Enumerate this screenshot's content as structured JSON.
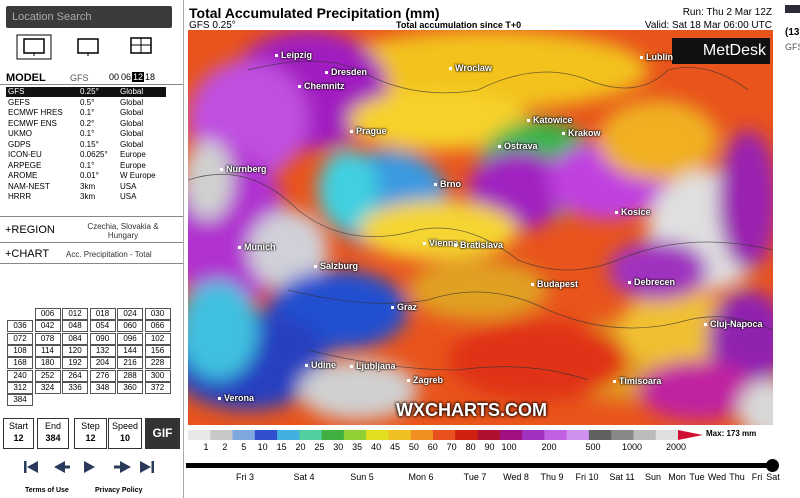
{
  "sidebar": {
    "search_placeholder": "Location Search",
    "model_label": "MODEL",
    "model_name": "GFS",
    "runs": [
      "00",
      "06",
      "12",
      "18"
    ],
    "active_run": "12",
    "models": [
      [
        "GFS",
        "0.25°",
        "Global"
      ],
      [
        "GEFS",
        "0.5°",
        "Global"
      ],
      [
        "ECMWF HRES",
        "0.1°",
        "Global"
      ],
      [
        "ECMWF ENS",
        "0.2°",
        "Global"
      ],
      [
        "UKMO",
        "0.1°",
        "Global"
      ],
      [
        "GDPS",
        "0.15°",
        "Global"
      ],
      [
        "ICON-EU",
        "0.0625°",
        "Europe"
      ],
      [
        "ARPEGE",
        "0.1°",
        "Europe"
      ],
      [
        "AROME",
        "0.01°",
        "W Europe"
      ],
      [
        "NAM-NEST",
        "3km",
        "USA"
      ],
      [
        "HRRR",
        "3km",
        "USA"
      ]
    ],
    "region_label": "+REGION",
    "region_value": "Czechia, Slovakia & Hungary",
    "chart_label": "+CHART",
    "chart_value": "Acc. Precipitation - Total",
    "steps": [
      [
        "006",
        "012",
        "018",
        "024",
        "030"
      ],
      [
        "036",
        "042",
        "048",
        "054",
        "060",
        "066"
      ],
      [
        "072",
        "078",
        "084",
        "090",
        "096",
        "102"
      ],
      [
        "108",
        "114",
        "120",
        "132",
        "144",
        "156"
      ],
      [
        "168",
        "180",
        "192",
        "204",
        "216",
        "228"
      ],
      [
        "240",
        "252",
        "264",
        "276",
        "288",
        "300"
      ],
      [
        "312",
        "324",
        "336",
        "348",
        "360",
        "372"
      ],
      [
        "384"
      ]
    ],
    "controls": [
      {
        "label": "Start",
        "value": "12"
      },
      {
        "label": "End",
        "value": "384"
      },
      {
        "label": "Step",
        "value": "12"
      },
      {
        "label": "Speed",
        "value": "10"
      }
    ],
    "gif": "GIF",
    "links": [
      "Terms of Use",
      "Privacy Policy"
    ]
  },
  "header": {
    "title": "Total Accumulated Precipitation (mm)",
    "model": "GFS 0.25°",
    "run": "Run: Thu 2 Mar 12Z",
    "subtitle": "Total accumulation since T+0",
    "valid": "Valid: Sat 18 Mar 06:00 UTC"
  },
  "map": {
    "brand": "MetDesk",
    "watermark": "WXCHARTS.COM",
    "cities": [
      "Leipzig",
      "Dresden",
      "Wroclaw",
      "Lublin",
      "Chemnitz",
      "Katowice",
      "Krakow",
      "Prague",
      "Ostrava",
      "Nurnberg",
      "Brno",
      "Kosice",
      "Vienna",
      "Bratislava",
      "Munich",
      "Salzburg",
      "Budapest",
      "Debrecen",
      "Graz",
      "Cluj-Napoca",
      "Udine",
      "Ljubljana",
      "Zagreb",
      "Timisoara",
      "Verona"
    ]
  },
  "legend": {
    "ticks": [
      "1",
      "2",
      "5",
      "10",
      "15",
      "20",
      "25",
      "30",
      "35",
      "40",
      "45",
      "50",
      "60",
      "70",
      "80",
      "90",
      "100",
      "200",
      "500",
      "1000",
      "2000"
    ],
    "max": "Max: 173 mm"
  },
  "timeline": {
    "days": [
      "Fri 3",
      "Sat 4",
      "Sun 5",
      "Mon 6",
      "Tue 7",
      "Wed 8",
      "Thu 9",
      "Fri 10",
      "Sat 11",
      "Sun",
      "Mon",
      "Tue",
      "Wed",
      "Thu",
      "Fri",
      "Sat"
    ]
  },
  "right_panel": [
    "(13",
    "GFS"
  ]
}
